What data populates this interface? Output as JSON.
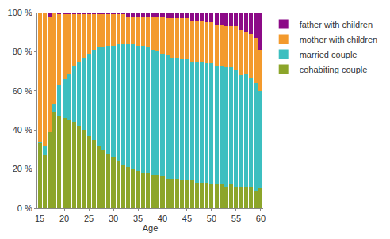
{
  "chart_data": {
    "type": "bar",
    "stacked": true,
    "x_label": "Age",
    "x": [
      15,
      16,
      17,
      18,
      19,
      20,
      21,
      22,
      23,
      24,
      25,
      26,
      27,
      28,
      29,
      30,
      31,
      32,
      33,
      34,
      35,
      36,
      37,
      38,
      39,
      40,
      41,
      42,
      43,
      44,
      45,
      46,
      47,
      48,
      49,
      50,
      51,
      52,
      53,
      54,
      55,
      56,
      57,
      58,
      59,
      60
    ],
    "xlim": [
      14.5,
      60.5
    ],
    "xticks": [
      15,
      20,
      25,
      30,
      35,
      40,
      45,
      50,
      55,
      60
    ],
    "ylim": [
      0,
      100
    ],
    "yticks": [
      {
        "value": 0,
        "label": "0 %"
      },
      {
        "value": 20,
        "label": "20 %"
      },
      {
        "value": 40,
        "label": "40 %"
      },
      {
        "value": 60,
        "label": "60 %"
      },
      {
        "value": 80,
        "label": "80 %"
      },
      {
        "value": 100,
        "label": "100 %"
      }
    ],
    "grid": false,
    "legend": "right",
    "series": [
      {
        "name": "cohabiting couple",
        "color": "#8ca52a",
        "values": [
          33,
          27,
          39,
          49,
          47,
          46,
          45,
          44,
          42,
          40,
          37,
          35,
          32,
          30,
          28,
          26,
          24,
          22,
          21,
          20,
          19,
          18,
          18,
          17,
          17,
          16,
          15,
          15,
          15,
          14,
          14,
          14,
          13,
          13,
          13,
          12,
          12,
          12,
          11,
          12,
          11,
          11,
          11,
          11,
          9,
          10
        ]
      },
      {
        "name": "married couple",
        "color": "#3cbfc0",
        "values": [
          1,
          5,
          0,
          4,
          16,
          20,
          24,
          29,
          33,
          37,
          42,
          46,
          50,
          52,
          55,
          57,
          60,
          62,
          63,
          64,
          64,
          65,
          64,
          64,
          63,
          63,
          63,
          62,
          62,
          62,
          62,
          61,
          62,
          62,
          61,
          62,
          61,
          61,
          61,
          60,
          60,
          57,
          58,
          56,
          55,
          50
        ]
      },
      {
        "name": "mother with children",
        "color": "#f39a2d",
        "values": [
          66,
          68,
          59,
          47,
          36,
          33,
          30,
          26,
          24,
          22,
          20,
          18,
          17,
          17,
          16,
          16,
          15,
          15,
          14,
          14,
          15,
          15,
          16,
          17,
          18,
          19,
          19,
          20,
          20,
          21,
          21,
          21,
          21,
          21,
          21,
          21,
          21,
          21,
          21,
          21,
          22,
          23,
          21,
          22,
          23,
          21
        ]
      },
      {
        "name": "father with children",
        "color": "#8c0a87",
        "values": [
          0,
          0,
          2,
          0,
          1,
          1,
          1,
          1,
          1,
          1,
          1,
          1,
          1,
          1,
          1,
          1,
          1,
          1,
          2,
          2,
          2,
          2,
          2,
          2,
          2,
          2,
          3,
          3,
          3,
          3,
          3,
          4,
          4,
          4,
          5,
          5,
          6,
          6,
          7,
          7,
          7,
          9,
          10,
          11,
          13,
          19
        ]
      }
    ]
  }
}
